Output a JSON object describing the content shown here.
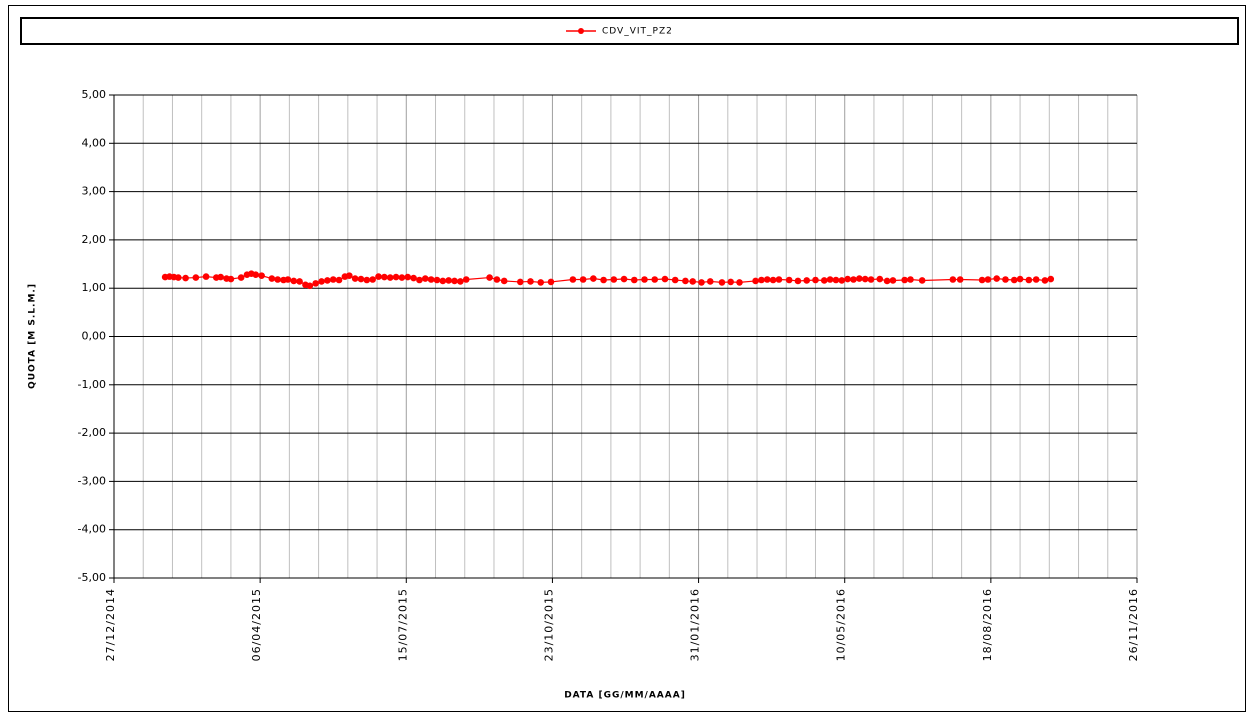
{
  "chart_data": {
    "type": "line",
    "x_label": "DATA [GG/MM/AAAA]",
    "y_label": "QUOTA [M S.L.M.]",
    "xlim": [
      "27/12/2014",
      "26/11/2016"
    ],
    "xticks": [
      "27/12/2014",
      "06/04/2015",
      "15/07/2015",
      "23/10/2015",
      "31/01/2016",
      "10/05/2016",
      "18/08/2016",
      "26/11/2016"
    ],
    "ylim": [
      -5,
      5
    ],
    "yticks": [
      {
        "value": -5,
        "label": "-5,00"
      },
      {
        "value": -4,
        "label": "-4,00"
      },
      {
        "value": -3,
        "label": "-3,00"
      },
      {
        "value": -2,
        "label": "-2,00"
      },
      {
        "value": -1,
        "label": "-1,00"
      },
      {
        "value": 0,
        "label": "0,00"
      },
      {
        "value": 1,
        "label": "1,00"
      },
      {
        "value": 2,
        "label": "2,00"
      },
      {
        "value": 3,
        "label": "3,00"
      },
      {
        "value": 4,
        "label": "4,00"
      },
      {
        "value": 5,
        "label": "5,00"
      }
    ],
    "grid": true,
    "legend": "top",
    "x": [
      "31/01/2015",
      "03/02/2015",
      "06/02/2015",
      "09/02/2015",
      "14/02/2015",
      "21/02/2015",
      "28/02/2015",
      "07/03/2015",
      "10/03/2015",
      "14/03/2015",
      "17/03/2015",
      "24/03/2015",
      "28/03/2015",
      "31/03/2015",
      "03/04/2015",
      "07/04/2015",
      "14/04/2015",
      "18/04/2015",
      "22/04/2015",
      "25/04/2015",
      "29/04/2015",
      "03/05/2015",
      "07/05/2015",
      "10/05/2015",
      "14/05/2015",
      "18/05/2015",
      "22/05/2015",
      "26/05/2015",
      "30/05/2015",
      "03/06/2015",
      "06/06/2015",
      "10/06/2015",
      "14/06/2015",
      "18/06/2015",
      "22/06/2015",
      "26/06/2015",
      "30/06/2015",
      "04/07/2015",
      "08/07/2015",
      "12/07/2015",
      "16/07/2015",
      "20/07/2015",
      "24/07/2015",
      "28/07/2015",
      "01/08/2015",
      "05/08/2015",
      "09/08/2015",
      "13/08/2015",
      "17/08/2015",
      "21/08/2015",
      "25/08/2015",
      "10/09/2015",
      "15/09/2015",
      "20/09/2015",
      "01/10/2015",
      "08/10/2015",
      "15/10/2015",
      "22/10/2015",
      "06/11/2015",
      "13/11/2015",
      "20/11/2015",
      "27/11/2015",
      "04/12/2015",
      "11/12/2015",
      "18/12/2015",
      "25/12/2015",
      "01/01/2016",
      "08/01/2016",
      "15/01/2016",
      "22/01/2016",
      "27/01/2016",
      "02/02/2016",
      "08/02/2016",
      "16/02/2016",
      "22/02/2016",
      "28/02/2016",
      "10/03/2016",
      "14/03/2016",
      "18/03/2016",
      "22/03/2016",
      "26/03/2016",
      "02/04/2016",
      "08/04/2016",
      "14/04/2016",
      "20/04/2016",
      "26/04/2016",
      "30/04/2016",
      "04/05/2016",
      "08/05/2016",
      "12/05/2016",
      "16/05/2016",
      "20/05/2016",
      "24/05/2016",
      "28/05/2016",
      "03/06/2016",
      "08/06/2016",
      "12/06/2016",
      "20/06/2016",
      "24/06/2016",
      "02/07/2016",
      "23/07/2016",
      "28/07/2016",
      "12/08/2016",
      "16/08/2016",
      "22/08/2016",
      "28/08/2016",
      "03/09/2016",
      "07/09/2016",
      "13/09/2016",
      "18/09/2016",
      "24/09/2016",
      "28/09/2016"
    ],
    "series": [
      {
        "name": "CDV_VIT_PZ2",
        "color": "#ff0000",
        "values": [
          1.23,
          1.24,
          1.23,
          1.22,
          1.21,
          1.22,
          1.24,
          1.22,
          1.23,
          1.2,
          1.19,
          1.22,
          1.28,
          1.3,
          1.28,
          1.26,
          1.2,
          1.18,
          1.17,
          1.18,
          1.15,
          1.14,
          1.07,
          1.05,
          1.1,
          1.14,
          1.16,
          1.18,
          1.17,
          1.24,
          1.26,
          1.2,
          1.19,
          1.17,
          1.18,
          1.24,
          1.23,
          1.22,
          1.23,
          1.22,
          1.23,
          1.21,
          1.17,
          1.2,
          1.18,
          1.17,
          1.15,
          1.16,
          1.15,
          1.14,
          1.18,
          1.22,
          1.18,
          1.15,
          1.13,
          1.14,
          1.12,
          1.13,
          1.18,
          1.18,
          1.2,
          1.17,
          1.18,
          1.19,
          1.17,
          1.18,
          1.18,
          1.19,
          1.17,
          1.15,
          1.14,
          1.12,
          1.14,
          1.12,
          1.13,
          1.12,
          1.15,
          1.17,
          1.18,
          1.17,
          1.18,
          1.17,
          1.15,
          1.16,
          1.17,
          1.16,
          1.18,
          1.17,
          1.16,
          1.19,
          1.18,
          1.2,
          1.19,
          1.18,
          1.19,
          1.15,
          1.16,
          1.17,
          1.18,
          1.16,
          1.18,
          1.18,
          1.17,
          1.18,
          1.2,
          1.18,
          1.17,
          1.19,
          1.17,
          1.18,
          1.16,
          1.19
        ]
      }
    ]
  }
}
